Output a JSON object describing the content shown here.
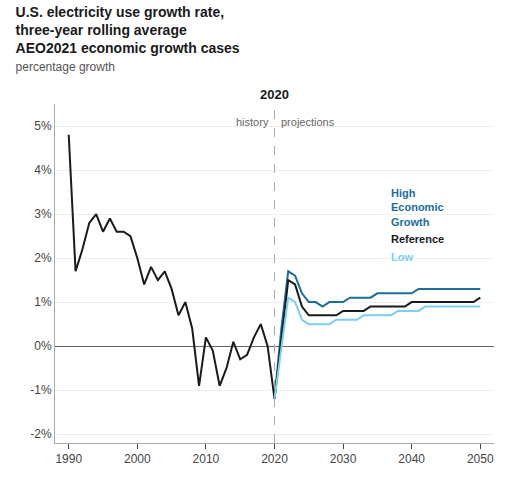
{
  "chart_data": {
    "type": "line",
    "title": [
      "U.S. electricity use growth rate,",
      "three-year rolling average",
      "AEO2021 economic growth cases"
    ],
    "subtitle": "percentage growth",
    "annotations": [
      {
        "text": "2020",
        "x": 2020
      },
      {
        "text": "history",
        "x": 2020
      },
      {
        "text": "projections",
        "x": 2020
      }
    ],
    "xlim": [
      1988,
      2052
    ],
    "xticks": [
      1990,
      2000,
      2010,
      2020,
      2030,
      2040,
      2050
    ],
    "ylim": [
      -0.022,
      0.055
    ],
    "yticks": [
      {
        "value": -0.02,
        "label": "-2%"
      },
      {
        "value": -0.01,
        "label": "-1%"
      },
      {
        "value": 0.0,
        "label": "0%"
      },
      {
        "value": 0.01,
        "label": "1%"
      },
      {
        "value": 0.02,
        "label": "2%"
      },
      {
        "value": 0.03,
        "label": "3%"
      },
      {
        "value": 0.04,
        "label": "4%"
      },
      {
        "value": 0.05,
        "label": "5%"
      }
    ],
    "grid": "y",
    "series": [
      {
        "color": "#1a1a1a",
        "x": [
          1990,
          1991,
          1992,
          1993,
          1994,
          1995,
          1996,
          1997,
          1998,
          1999,
          2000,
          2001,
          2002,
          2003,
          2004,
          2005,
          2006,
          2007,
          2008,
          2009,
          2010,
          2011,
          2012,
          2013,
          2014,
          2015,
          2016,
          2017,
          2018,
          2019,
          2020
        ],
        "values": [
          0.048,
          0.017,
          0.022,
          0.028,
          0.03,
          0.026,
          0.029,
          0.026,
          0.026,
          0.025,
          0.02,
          0.014,
          0.018,
          0.015,
          0.017,
          0.013,
          0.007,
          0.01,
          0.004,
          -0.009,
          0.002,
          -0.001,
          -0.009,
          -0.005,
          0.001,
          -0.003,
          -0.002,
          0.002,
          0.005,
          0.0,
          -0.012
        ]
      },
      {
        "name": "High Economic Growth",
        "color": "#1a6e9e",
        "x": [
          2020,
          2021,
          2022,
          2023,
          2024,
          2025,
          2026,
          2027,
          2028,
          2029,
          2030,
          2031,
          2032,
          2033,
          2034,
          2035,
          2036,
          2037,
          2038,
          2039,
          2040,
          2041,
          2042,
          2043,
          2044,
          2045,
          2046,
          2047,
          2048,
          2049,
          2050
        ],
        "values": [
          -0.012,
          0.004,
          0.017,
          0.016,
          0.012,
          0.01,
          0.01,
          0.009,
          0.01,
          0.01,
          0.01,
          0.011,
          0.011,
          0.011,
          0.011,
          0.012,
          0.012,
          0.012,
          0.012,
          0.012,
          0.012,
          0.013,
          0.013,
          0.013,
          0.013,
          0.013,
          0.013,
          0.013,
          0.013,
          0.013,
          0.013
        ]
      },
      {
        "name": "Reference",
        "color": "#1a1a1a",
        "x": [
          2020,
          2021,
          2022,
          2023,
          2024,
          2025,
          2026,
          2027,
          2028,
          2029,
          2030,
          2031,
          2032,
          2033,
          2034,
          2035,
          2036,
          2037,
          2038,
          2039,
          2040,
          2041,
          2042,
          2043,
          2044,
          2045,
          2046,
          2047,
          2048,
          2049,
          2050
        ],
        "values": [
          -0.012,
          0.002,
          0.015,
          0.014,
          0.009,
          0.007,
          0.007,
          0.007,
          0.007,
          0.007,
          0.008,
          0.008,
          0.008,
          0.008,
          0.009,
          0.009,
          0.009,
          0.009,
          0.009,
          0.009,
          0.01,
          0.01,
          0.01,
          0.01,
          0.01,
          0.01,
          0.01,
          0.01,
          0.01,
          0.01,
          0.011
        ]
      },
      {
        "name": "Low",
        "color": "#7acfee",
        "x": [
          2020,
          2021,
          2022,
          2023,
          2024,
          2025,
          2026,
          2027,
          2028,
          2029,
          2030,
          2031,
          2032,
          2033,
          2034,
          2035,
          2036,
          2037,
          2038,
          2039,
          2040,
          2041,
          2042,
          2043,
          2044,
          2045,
          2046,
          2047,
          2048,
          2049,
          2050
        ],
        "values": [
          -0.012,
          0.0,
          0.011,
          0.01,
          0.006,
          0.005,
          0.005,
          0.005,
          0.005,
          0.006,
          0.006,
          0.006,
          0.006,
          0.007,
          0.007,
          0.007,
          0.007,
          0.007,
          0.008,
          0.008,
          0.008,
          0.008,
          0.009,
          0.009,
          0.009,
          0.009,
          0.009,
          0.009,
          0.009,
          0.009,
          0.009
        ]
      }
    ]
  }
}
